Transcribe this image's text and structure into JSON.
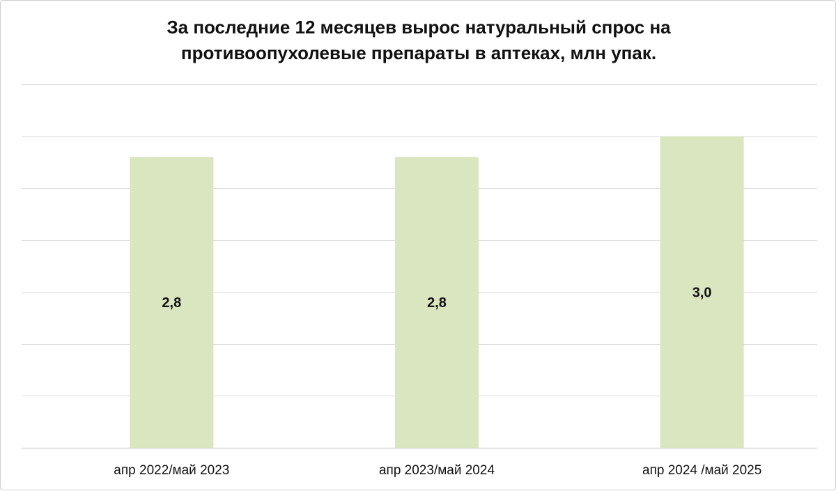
{
  "chart_data": {
    "type": "bar",
    "title_lines": [
      "За последние 12 месяцев вырос натуральный спрос на",
      "противоопухолевые препараты в аптеках, млн упак."
    ],
    "categories": [
      "апр 2022/май 2023",
      "апр 2023/май 2024",
      "апр 2024 /май 2025"
    ],
    "values": [
      2.8,
      2.8,
      3.0
    ],
    "value_labels": [
      "2,8",
      "2,8",
      "3,0"
    ],
    "ylim": [
      0,
      3.5
    ],
    "grid": true,
    "legend": "none",
    "colors": {
      "bar": "#d9e6c0",
      "grid": "#d9d9d9",
      "text": "#111111"
    }
  }
}
